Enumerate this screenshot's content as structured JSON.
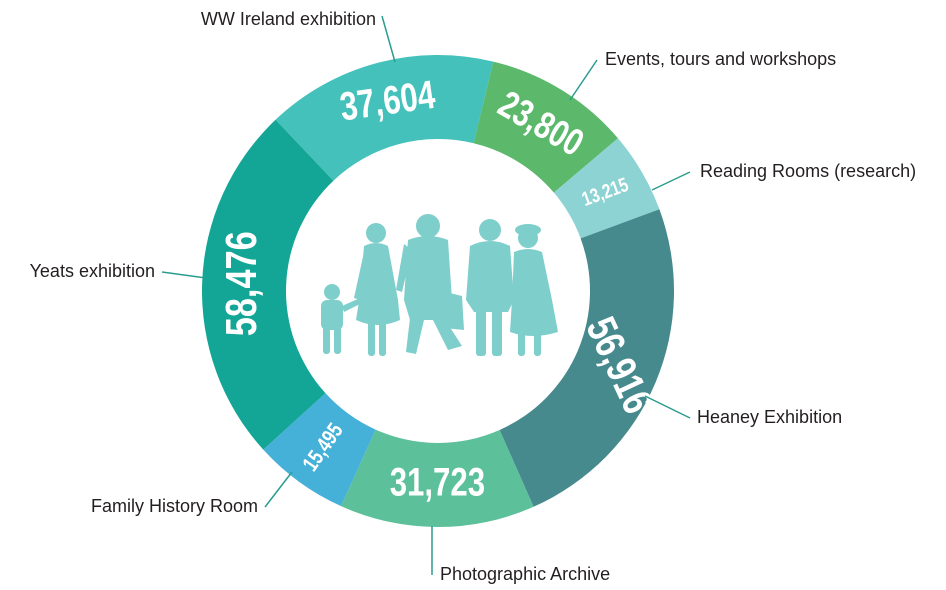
{
  "chart_data": {
    "type": "donut",
    "categories": [
      "WW Ireland exhibition",
      "Events, tours and workshops",
      "Reading Rooms (research)",
      "Heaney Exhibition",
      "Photographic Archive",
      "Family History Room",
      "Yeats exhibition"
    ],
    "values": [
      37604,
      23800,
      13215,
      56916,
      31723,
      15495,
      58476
    ],
    "value_labels": [
      "37,604",
      "23,800",
      "13,215",
      "56,916",
      "31,723",
      "15,495",
      "58,476"
    ],
    "colors": [
      "#44c1bb",
      "#5cb86a",
      "#8dd3d3",
      "#468a8e",
      "#5cc09a",
      "#45b0d8",
      "#13a596"
    ]
  }
}
